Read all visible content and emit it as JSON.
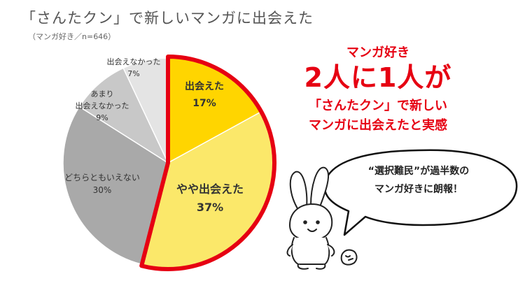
{
  "title": "「さんたクン」で新しいマンガに出会えた",
  "subtitle": "（マンガ好き／n=646）",
  "chart_data": {
    "type": "pie",
    "title": "「さんたクン」で新しいマンガに出会えた",
    "subtitle": "（マンガ好き／n=646）",
    "slices": [
      {
        "label": "出会えた",
        "value": 17,
        "value_label": "17%",
        "color": "#ffd500",
        "highlight": true
      },
      {
        "label": "やや出会えた",
        "value": 37,
        "value_label": "37%",
        "color": "#fbe86a",
        "highlight": true
      },
      {
        "label": "どちらともいえない",
        "value": 30,
        "value_label": "30%",
        "color": "#a9a9a9",
        "highlight": false
      },
      {
        "label": "あまり\n出会えなかった",
        "value": 9,
        "value_label": "9%",
        "color": "#c8c8c8",
        "highlight": false
      },
      {
        "label": "出会えなかった",
        "value": 7,
        "value_label": "7%",
        "color": "#e4e4e4",
        "highlight": false
      }
    ],
    "start": "12 o'clock",
    "direction": "clockwise",
    "highlight_color": "#e60012"
  },
  "headline": {
    "line1": "マンガ好き",
    "line2": "2人に1人が",
    "line3": "「さんたクン」で新しい",
    "line4": "マンガに出会えたと実感",
    "color": "#e60012"
  },
  "bubble": {
    "line1": "“選択難民”が過半数の",
    "line2": "マンガ好きに朗報！"
  },
  "illustration": "rabbit-character"
}
